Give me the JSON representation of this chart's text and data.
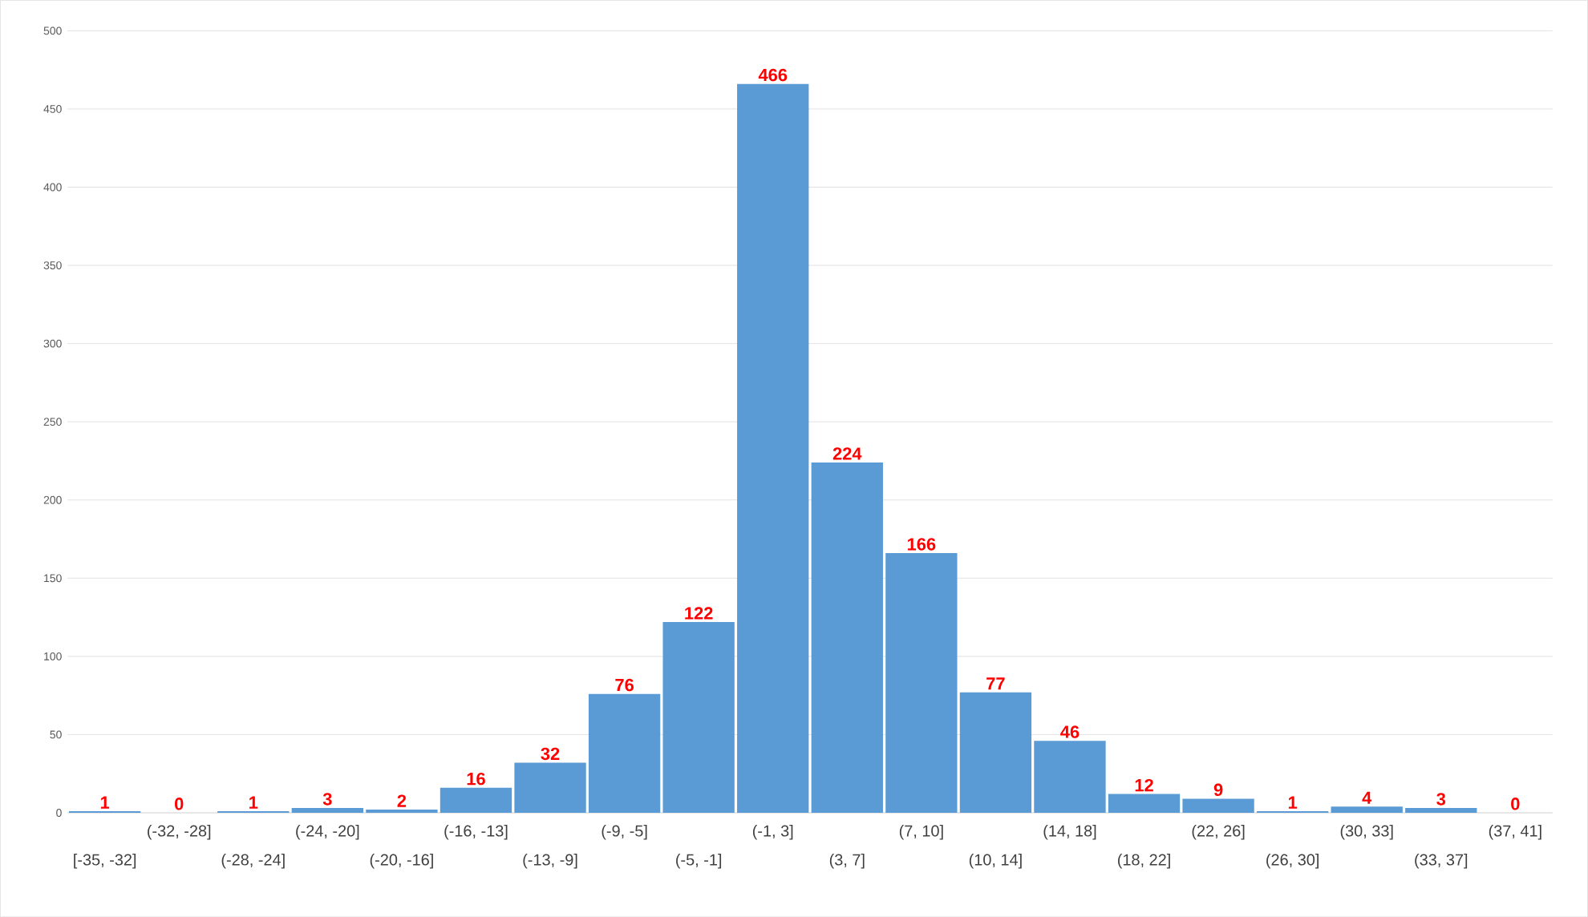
{
  "chart_data": {
    "type": "bar",
    "categories": [
      "[-35, -32]",
      "(-32, -28]",
      "(-28, -24]",
      "(-24, -20]",
      "(-20, -16]",
      "(-16, -13]",
      "(-13, -9]",
      "(-9, -5]",
      "(-5, -1]",
      "(-1, 3]",
      "(3, 7]",
      "(7, 10]",
      "(10, 14]",
      "(14, 18]",
      "(18, 22]",
      "(22, 26]",
      "(26, 30]",
      "(30, 33]",
      "(33, 37]",
      "(37, 41]"
    ],
    "values": [
      1,
      0,
      1,
      3,
      2,
      16,
      32,
      76,
      122,
      466,
      224,
      166,
      77,
      46,
      12,
      9,
      1,
      4,
      3,
      0
    ],
    "color": "#5b9bd5",
    "ylim": [
      0,
      500
    ],
    "yticks": [
      0,
      50,
      100,
      150,
      200,
      250,
      300,
      350,
      400,
      450,
      500
    ],
    "grid": "y",
    "data_labels": true
  }
}
